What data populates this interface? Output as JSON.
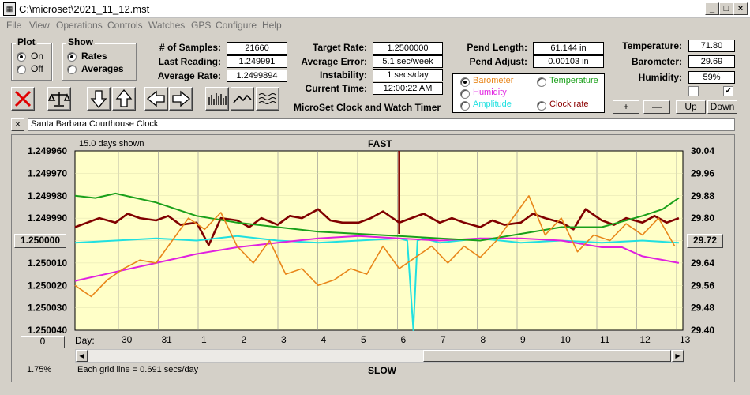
{
  "window": {
    "title": "C:\\microset\\2021_11_12.mst",
    "app_icon": "calculator-icon"
  },
  "menu": [
    "File",
    "View",
    "Operations",
    "Controls",
    "Watches",
    "GPS",
    "Configure",
    "Help"
  ],
  "plot_group": {
    "label": "Plot",
    "options": [
      "On",
      "Off"
    ],
    "selected": "On"
  },
  "show_group": {
    "label": "Show",
    "options": [
      "Rates",
      "Averages"
    ],
    "selected": "Rates"
  },
  "stats": {
    "samples_label": "# of Samples:",
    "samples": "21660",
    "last_label": "Last Reading:",
    "last": "1.249991",
    "avg_rate_label": "Average Rate:",
    "avg_rate": "1.2499894",
    "target_label": "Target Rate:",
    "target": "1.2500000",
    "avg_err_label": "Average Error:",
    "avg_err": "5.1 sec/week",
    "instab_label": "Instability:",
    "instab": "1 secs/day",
    "time_label": "Current Time:",
    "time": "12:00:22 AM",
    "pend_len_label": "Pend Length:",
    "pend_len": "61.144 in",
    "pend_adj_label": "Pend Adjust:",
    "pend_adj": "0.00103 in",
    "temp_label": "Temperature:",
    "temp": "71.80",
    "baro_label": "Barometer:",
    "baro": "29.69",
    "hum_label": "Humidity:",
    "hum": "59%"
  },
  "app_caption": "MicroSet Clock and Watch Timer",
  "series_select": {
    "options": [
      {
        "label": "Barometer",
        "color": "#e8861a",
        "selected": true
      },
      {
        "label": "Temperature",
        "color": "#1aa01a",
        "selected": false
      },
      {
        "label": "Humidity",
        "color": "#e020e0",
        "selected": false
      },
      {
        "label": "Clock rate",
        "color": "#8b0000",
        "selected": false
      },
      {
        "label": "Amplitude",
        "color": "#20e0e0",
        "selected": false
      }
    ]
  },
  "controls": {
    "plus": "+",
    "minus": "—",
    "up": "Up",
    "down": "Down"
  },
  "clock_name": "Santa Barbara Courthouse Clock",
  "chart_data": {
    "type": "line",
    "title_top": "FAST",
    "title_bottom": "SLOW",
    "days_shown": "15.0 days shown",
    "grid_note": "Each grid line = 0.691 secs/day",
    "percent": "1.75%",
    "x_prefix": "Day:",
    "x_ticks": [
      "30",
      "31",
      "1",
      "2",
      "3",
      "4",
      "5",
      "6",
      "7",
      "8",
      "9",
      "10",
      "11",
      "12",
      "13"
    ],
    "left_ticks": [
      "1.249960",
      "1.249970",
      "1.249980",
      "1.249990",
      "1.250000",
      "1.250010",
      "1.250020",
      "1.250030",
      "1.250040"
    ],
    "right_ticks": [
      "30.04",
      "29.96",
      "29.88",
      "29.80",
      "29.72",
      "29.64",
      "29.56",
      "29.48",
      "29.40"
    ],
    "left_button": "1.250000",
    "right_button": "29.72",
    "bottom_button": "0",
    "ylim_left": [
      1.25004,
      1.24996
    ],
    "ylim_right": [
      29.4,
      30.04
    ],
    "series": [
      {
        "name": "Clock rate",
        "color": "#800000",
        "axis": "left",
        "width": 2.6,
        "x": [
          0,
          0.3,
          0.6,
          1,
          1.3,
          1.6,
          2,
          2.3,
          2.6,
          3,
          3.3,
          3.6,
          4,
          4.3,
          4.6,
          5,
          5.3,
          5.6,
          6,
          6.3,
          6.6,
          7,
          7.3,
          7.6,
          8,
          8.3,
          8.6,
          9,
          9.3,
          9.6,
          10,
          10.3,
          10.6,
          11,
          11.3,
          11.6,
          12,
          12.3,
          12.6,
          13,
          13.3,
          13.6,
          14,
          14.3,
          14.6,
          14.9
        ],
        "y": [
          1.249994,
          1.249992,
          1.24999,
          1.249992,
          1.249988,
          1.24999,
          1.249991,
          1.249989,
          1.249993,
          1.249992,
          1.250002,
          1.24999,
          1.249991,
          1.249994,
          1.24999,
          1.249993,
          1.249989,
          1.24999,
          1.249986,
          1.249991,
          1.249992,
          1.249992,
          1.24999,
          1.249987,
          1.249992,
          1.24999,
          1.249988,
          1.249992,
          1.24999,
          1.249992,
          1.249994,
          1.249991,
          1.249993,
          1.249992,
          1.249988,
          1.24999,
          1.249992,
          1.249995,
          1.249986,
          1.249991,
          1.249993,
          1.24999,
          1.249992,
          1.249989,
          1.249992,
          1.24999
        ]
      },
      {
        "name": "Amplitude",
        "color": "#20e0e0",
        "axis": "left",
        "width": 2,
        "x": [
          0,
          1,
          2,
          3,
          4,
          5,
          6,
          7,
          8,
          8.2,
          8.35,
          8.45,
          8.6,
          9,
          10,
          11,
          12,
          13,
          14,
          14.9
        ],
        "y": [
          1.250001,
          1.25,
          1.249999,
          1.25,
          1.249998,
          1.25,
          1.250001,
          1.25,
          1.249999,
          1.25,
          1.25004,
          1.25,
          1.249999,
          1.250001,
          1.249999,
          1.250001,
          1.25,
          1.250001,
          1.25,
          1.250001
        ]
      },
      {
        "name": "Humidity",
        "color": "#e020e0",
        "axis": "left",
        "width": 2,
        "x": [
          0,
          1,
          2,
          3,
          4,
          5,
          6,
          7,
          8,
          9,
          10,
          11,
          12,
          13,
          13.5,
          14,
          14.9
        ],
        "y": [
          1.250018,
          1.250014,
          1.25001,
          1.250006,
          1.250003,
          1.250001,
          1.249999,
          1.249998,
          1.249999,
          1.25,
          1.249999,
          1.249999,
          1.25,
          1.250003,
          1.250003,
          1.250007,
          1.25001
        ]
      },
      {
        "name": "Temperature",
        "color": "#1aa01a",
        "axis": "left",
        "width": 2,
        "x": [
          0,
          0.5,
          1,
          2,
          3,
          4,
          5,
          6,
          7,
          8,
          9,
          10,
          11,
          12,
          13,
          14,
          14.5,
          14.9
        ],
        "y": [
          1.24998,
          1.249981,
          1.249979,
          1.249983,
          1.249989,
          1.249992,
          1.249994,
          1.249996,
          1.249997,
          1.249998,
          1.249999,
          1.25,
          1.249997,
          1.249994,
          1.249994,
          1.249989,
          1.249986,
          1.249981
        ]
      },
      {
        "name": "Barometer",
        "color": "#e8861a",
        "axis": "right",
        "width": 1.6,
        "x": [
          0,
          0.4,
          0.8,
          1.2,
          1.6,
          2,
          2.4,
          2.8,
          3.2,
          3.6,
          4,
          4.4,
          4.8,
          5.2,
          5.6,
          6,
          6.4,
          6.8,
          7.2,
          7.6,
          8,
          8.4,
          8.8,
          9.2,
          9.6,
          10,
          10.4,
          10.8,
          11.2,
          11.6,
          12,
          12.4,
          12.8,
          13.2,
          13.6,
          14,
          14.4,
          14.8
        ],
        "y": [
          29.56,
          29.52,
          29.58,
          29.62,
          29.65,
          29.64,
          29.72,
          29.8,
          29.76,
          29.82,
          29.7,
          29.64,
          29.72,
          29.6,
          29.62,
          29.56,
          29.58,
          29.62,
          29.6,
          29.7,
          29.62,
          29.66,
          29.7,
          29.64,
          29.7,
          29.66,
          29.72,
          29.8,
          29.88,
          29.74,
          29.8,
          29.68,
          29.74,
          29.72,
          29.78,
          29.74,
          29.8,
          29.7
        ]
      }
    ]
  }
}
